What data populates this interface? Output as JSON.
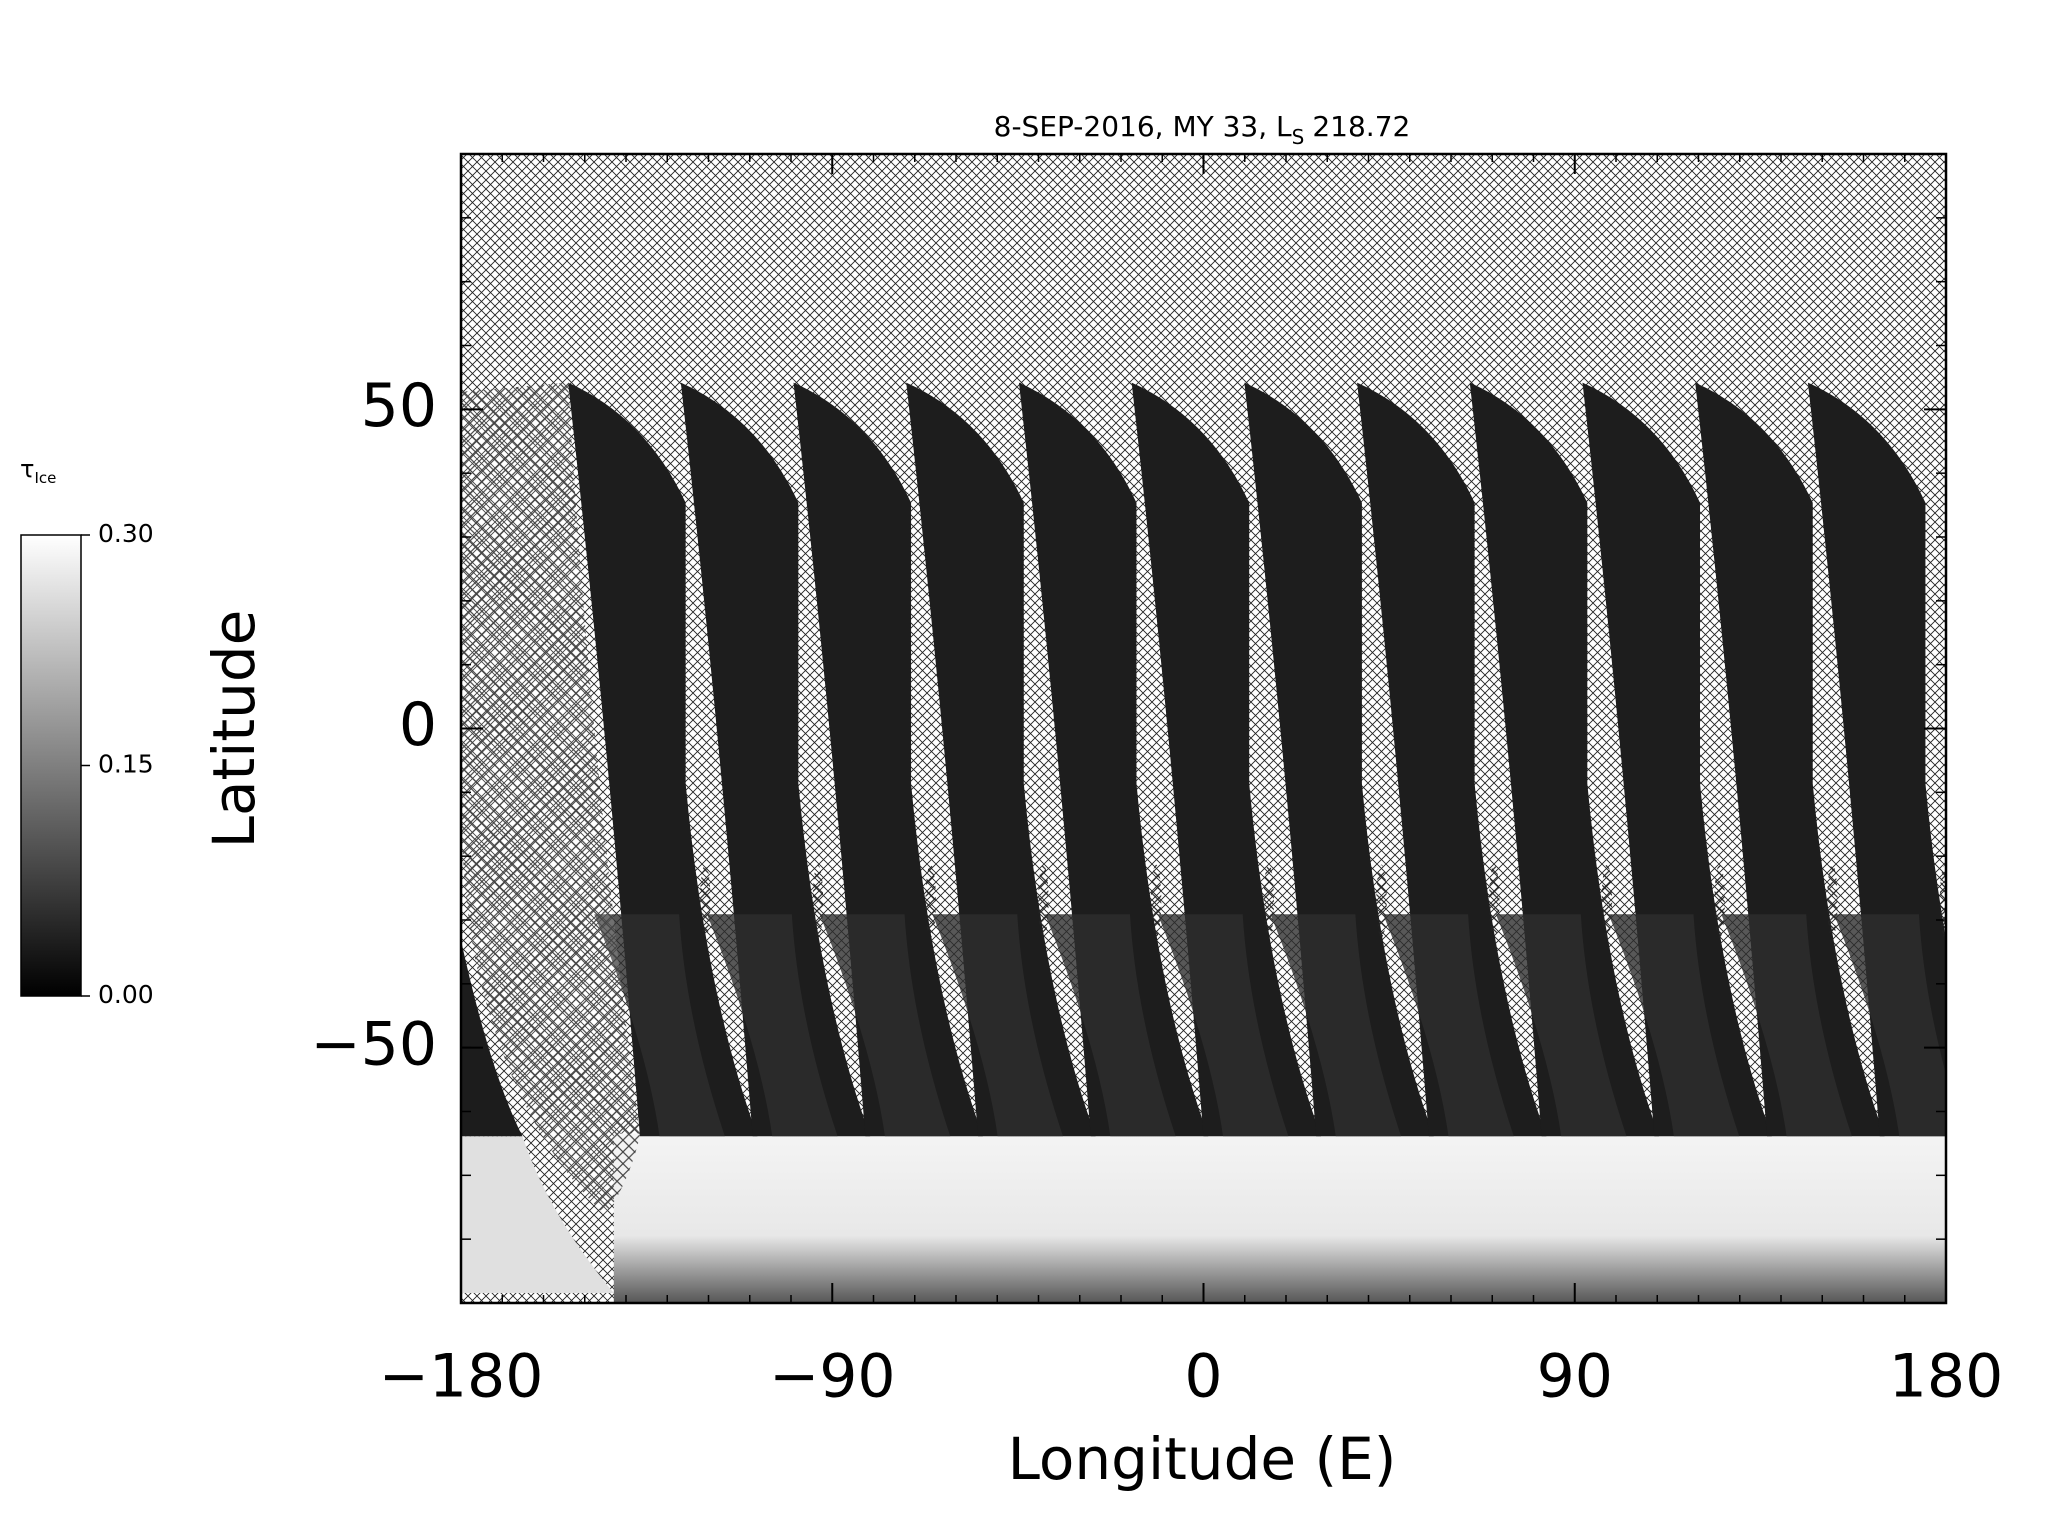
{
  "chart_data": {
    "type": "map",
    "title": {
      "main": "8-SEP-2016, MY 33,  L",
      "subscript": "S",
      "value": "218.72"
    },
    "x_label": "Longitude (E)",
    "y_label": "Latitude",
    "xlim": [
      -180,
      180
    ],
    "xticks": [
      {
        "value": -180,
        "label": "−180"
      },
      {
        "value": -90,
        "label": "−90"
      },
      0,
      90,
      180
    ],
    "ylim": [
      -90,
      90
    ],
    "yticks": [
      {
        "value": -50,
        "label": "−50"
      },
      0,
      50
    ],
    "colorbar": {
      "symbol": "τ",
      "subscript": "Ice",
      "clim": [
        0,
        0.3
      ],
      "ticks": [
        {
          "value": 0,
          "label": "0.00"
        },
        {
          "value": 0.15,
          "label": "0.15"
        },
        {
          "value": 0.3,
          "label": "0.30"
        }
      ]
    }
  }
}
